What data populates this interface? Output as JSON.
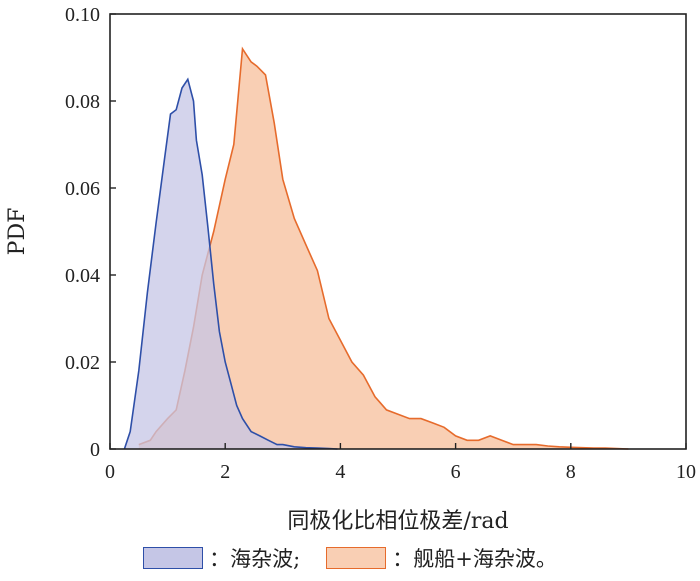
{
  "chart_data": {
    "type": "area",
    "xlabel": "同极化比相位极差/rad",
    "ylabel": "PDF",
    "xlim": [
      0,
      10
    ],
    "ylim": [
      0,
      0.1
    ],
    "xticks": [
      "0",
      "2",
      "4",
      "6",
      "8",
      "10"
    ],
    "yticks": [
      "0",
      "0.02",
      "0.04",
      "0.06",
      "0.08",
      "0.10"
    ],
    "grid": false,
    "legend_position": "bottom",
    "series": [
      {
        "name": "：海杂波;",
        "fill": "#c5c6e6",
        "stroke": "#2e4fa8",
        "x": [
          0.25,
          0.35,
          0.5,
          0.65,
          0.8,
          0.95,
          1.05,
          1.15,
          1.25,
          1.35,
          1.45,
          1.5,
          1.6,
          1.7,
          1.8,
          1.9,
          2.0,
          2.1,
          2.2,
          2.3,
          2.45,
          2.6,
          2.75,
          2.9,
          3.0,
          3.2,
          3.4,
          3.6,
          3.8,
          3.95
        ],
        "y": [
          0.0,
          0.004,
          0.018,
          0.036,
          0.052,
          0.067,
          0.077,
          0.078,
          0.083,
          0.085,
          0.08,
          0.071,
          0.063,
          0.051,
          0.038,
          0.027,
          0.02,
          0.015,
          0.01,
          0.007,
          0.004,
          0.003,
          0.002,
          0.001,
          0.001,
          0.0005,
          0.0003,
          0.0002,
          0.0001,
          0.0
        ]
      },
      {
        "name": "：舰船+海杂波。",
        "fill": "#f9cfb4",
        "stroke": "#e66b2c",
        "x": [
          0.5,
          0.7,
          0.8,
          1.0,
          1.15,
          1.3,
          1.45,
          1.6,
          1.8,
          2.0,
          2.15,
          2.3,
          2.45,
          2.55,
          2.7,
          2.85,
          3.0,
          3.2,
          3.4,
          3.6,
          3.8,
          4.0,
          4.2,
          4.4,
          4.6,
          4.8,
          5.0,
          5.2,
          5.4,
          5.6,
          5.8,
          6.0,
          6.2,
          6.4,
          6.6,
          6.8,
          7.0,
          7.2,
          7.4,
          7.6,
          7.8,
          8.0,
          8.2,
          8.4,
          8.6,
          8.8,
          9.0
        ],
        "y": [
          0.001,
          0.002,
          0.004,
          0.007,
          0.009,
          0.018,
          0.028,
          0.04,
          0.05,
          0.062,
          0.07,
          0.092,
          0.089,
          0.088,
          0.086,
          0.075,
          0.062,
          0.053,
          0.047,
          0.041,
          0.03,
          0.025,
          0.02,
          0.017,
          0.012,
          0.009,
          0.008,
          0.007,
          0.007,
          0.006,
          0.005,
          0.003,
          0.002,
          0.002,
          0.003,
          0.002,
          0.001,
          0.001,
          0.001,
          0.0007,
          0.0005,
          0.0004,
          0.0003,
          0.0002,
          0.0002,
          0.0001,
          0.0
        ]
      }
    ]
  }
}
